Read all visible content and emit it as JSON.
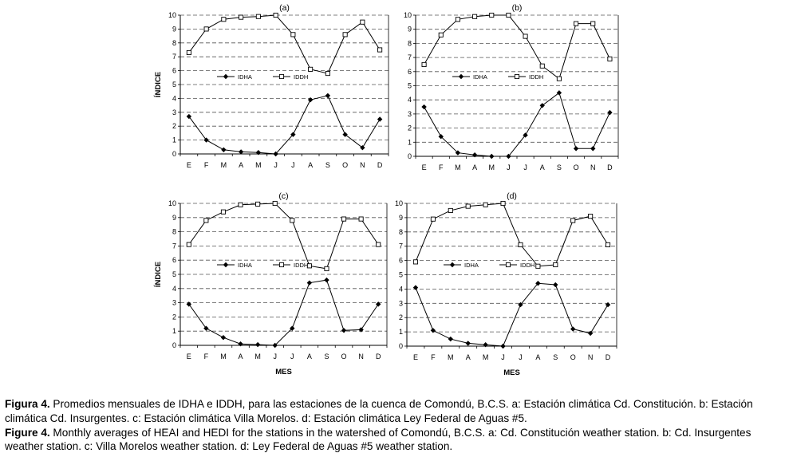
{
  "chart_data": [
    {
      "type": "line",
      "title": "(a)",
      "xlabel": "",
      "ylabel": "ÍNDICE",
      "ylim": [
        0,
        10
      ],
      "yticks": [
        0,
        1,
        2,
        3,
        4,
        5,
        6,
        7,
        8,
        9,
        10
      ],
      "categories": [
        "E",
        "F",
        "M",
        "A",
        "M",
        "J",
        "J",
        "A",
        "S",
        "O",
        "N",
        "D"
      ],
      "grid": "horizontal dashed",
      "legend_position": "center-left",
      "series": [
        {
          "name": "IDHA",
          "marker": "diamond",
          "values": [
            2.7,
            1.0,
            0.3,
            0.15,
            0.1,
            0.0,
            1.4,
            3.9,
            4.2,
            1.4,
            0.45,
            2.5
          ]
        },
        {
          "name": "IDDH",
          "marker": "square",
          "values": [
            7.3,
            9.0,
            9.7,
            9.85,
            9.9,
            10.0,
            8.6,
            6.1,
            5.8,
            8.6,
            9.5,
            7.5
          ]
        }
      ]
    },
    {
      "type": "line",
      "title": "(b)",
      "xlabel": "",
      "ylabel": "",
      "ylim": [
        0,
        10
      ],
      "yticks": [
        0,
        1,
        2,
        3,
        4,
        5,
        6,
        7,
        8,
        9,
        10
      ],
      "categories": [
        "E",
        "F",
        "M",
        "A",
        "M",
        "J",
        "J",
        "A",
        "S",
        "O",
        "N",
        "D"
      ],
      "grid": "horizontal dashed",
      "legend_position": "center-left",
      "series": [
        {
          "name": "IDHA",
          "marker": "diamond",
          "values": [
            3.5,
            1.4,
            0.25,
            0.1,
            0.0,
            0.0,
            1.5,
            3.6,
            4.5,
            0.55,
            0.55,
            3.1
          ]
        },
        {
          "name": "IDDH",
          "marker": "square",
          "values": [
            6.5,
            8.6,
            9.7,
            9.9,
            10.0,
            10.0,
            8.5,
            6.4,
            5.5,
            9.4,
            9.4,
            6.9
          ]
        }
      ]
    },
    {
      "type": "line",
      "title": "(c)",
      "xlabel": "MES",
      "ylabel": "ÍNDICE",
      "ylim": [
        0,
        10
      ],
      "yticks": [
        0,
        1,
        2,
        3,
        4,
        5,
        6,
        7,
        8,
        9,
        10
      ],
      "categories": [
        "E",
        "F",
        "M",
        "A",
        "M",
        "J",
        "J",
        "A",
        "S",
        "O",
        "N",
        "D"
      ],
      "grid": "horizontal dashed",
      "legend_position": "center-left",
      "series": [
        {
          "name": "IDHA",
          "marker": "diamond",
          "values": [
            2.9,
            1.2,
            0.55,
            0.1,
            0.05,
            0.0,
            1.2,
            4.4,
            4.6,
            1.05,
            1.1,
            2.9
          ]
        },
        {
          "name": "IDDH",
          "marker": "square",
          "values": [
            7.1,
            8.8,
            9.4,
            9.9,
            9.95,
            10.0,
            8.8,
            5.6,
            5.4,
            8.9,
            8.9,
            7.1
          ]
        }
      ]
    },
    {
      "type": "line",
      "title": "(d)",
      "xlabel": "MES",
      "ylabel": "",
      "ylim": [
        0,
        10
      ],
      "yticks": [
        0,
        1,
        2,
        3,
        4,
        5,
        6,
        7,
        8,
        9,
        10
      ],
      "categories": [
        "E",
        "F",
        "M",
        "A",
        "M",
        "J",
        "J",
        "A",
        "S",
        "O",
        "N",
        "D"
      ],
      "grid": "horizontal dashed",
      "legend_position": "center-left",
      "series": [
        {
          "name": "IDHA",
          "marker": "diamond",
          "values": [
            4.1,
            1.1,
            0.5,
            0.2,
            0.1,
            0.0,
            2.9,
            4.4,
            4.3,
            1.2,
            0.9,
            2.9
          ]
        },
        {
          "name": "IDDH",
          "marker": "square",
          "values": [
            5.9,
            8.9,
            9.5,
            9.8,
            9.9,
            10.0,
            7.1,
            5.6,
            5.7,
            8.8,
            9.1,
            7.1
          ]
        }
      ]
    }
  ],
  "caption": {
    "es_label": "Figura 4.",
    "es_text": " Promedios mensuales de IDHA e IDDH, para las estaciones de la cuenca de Comondú, B.C.S. a: Estación climática Cd. Constitución. b: Estación climática Cd. Insurgentes. c: Estación climática Villa Morelos. d: Estación climática Ley Federal de Aguas #5.",
    "en_label": "Figure 4.",
    "en_text": " Monthly averages of HEAI and HEDI for the stations in the watershed of Comondú, B.C.S. a: Cd. Constitución weather station. b: Cd. Insurgentes weather station. c: Villa Morelos weather station. d: Ley Federal de Aguas #5 weather station."
  }
}
